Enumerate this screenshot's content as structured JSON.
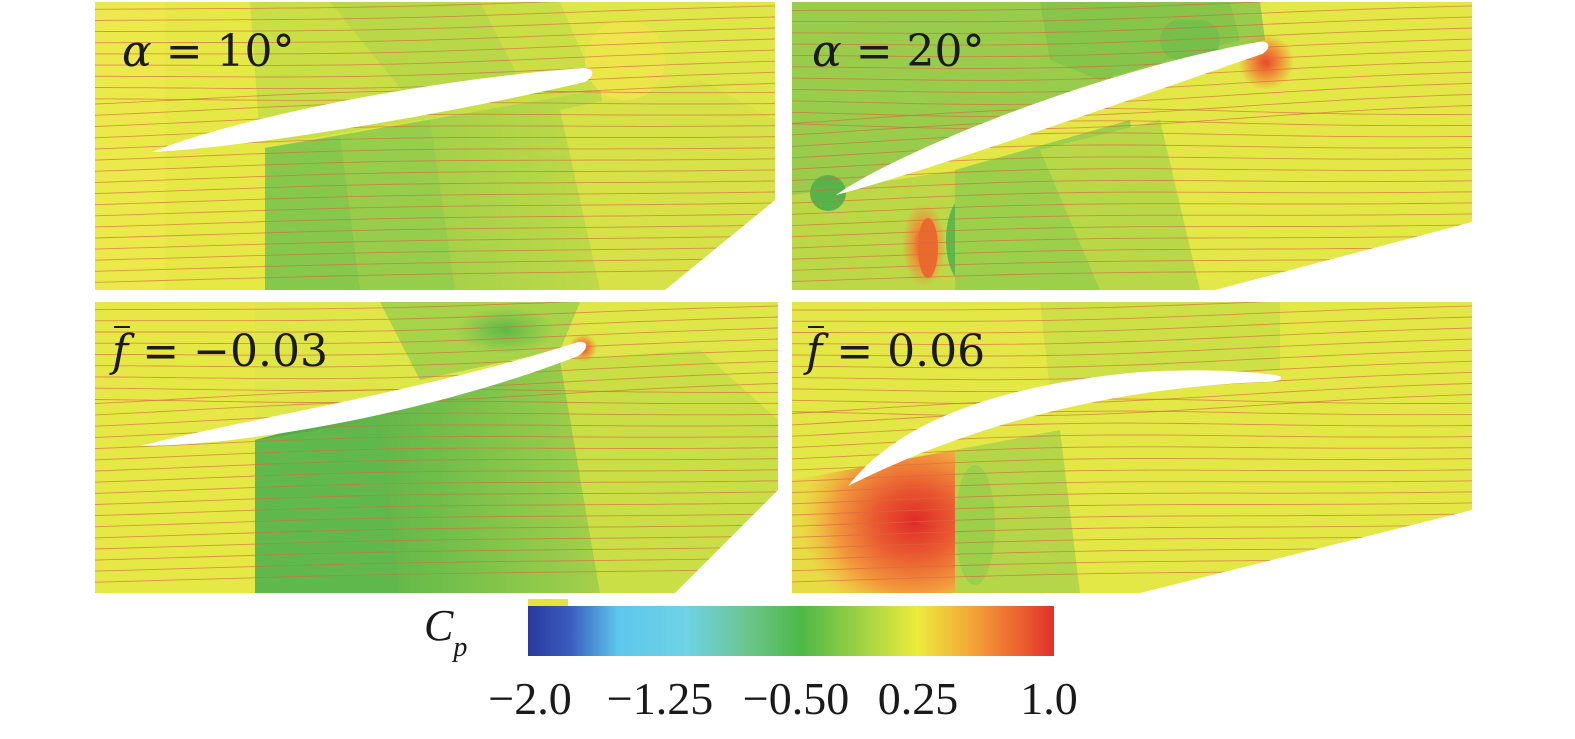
{
  "panels": [
    {
      "id": "alpha10",
      "symbol": "α",
      "label_rest": " = 10°"
    },
    {
      "id": "alpha20",
      "symbol": "α",
      "label_rest": " = 20°"
    },
    {
      "id": "fneg003",
      "symbol": "f",
      "label_rest": " = −0.03"
    },
    {
      "id": "fpos006",
      "symbol": "f",
      "label_rest": " = 0.06"
    }
  ],
  "colorbar": {
    "title_main": "C",
    "title_sub": "p",
    "ticks": [
      "−2.0",
      "−1.25",
      "−0.50",
      "0.25",
      "1.0"
    ],
    "colors": {
      "dark_blue": "#2a3a9c",
      "cyan": "#5cc6ec",
      "green": "#4db848",
      "yellow": "#ecec3c",
      "red": "#e0302c"
    }
  },
  "field_colors": {
    "yellow": "#e6e845",
    "yellow_green": "#c9df45",
    "light_green": "#a8d44a",
    "green": "#86c84c",
    "dark_green": "#5fb84c",
    "orange": "#f09a3a",
    "red": "#e04a2c",
    "streamline": "#d86a4a"
  }
}
